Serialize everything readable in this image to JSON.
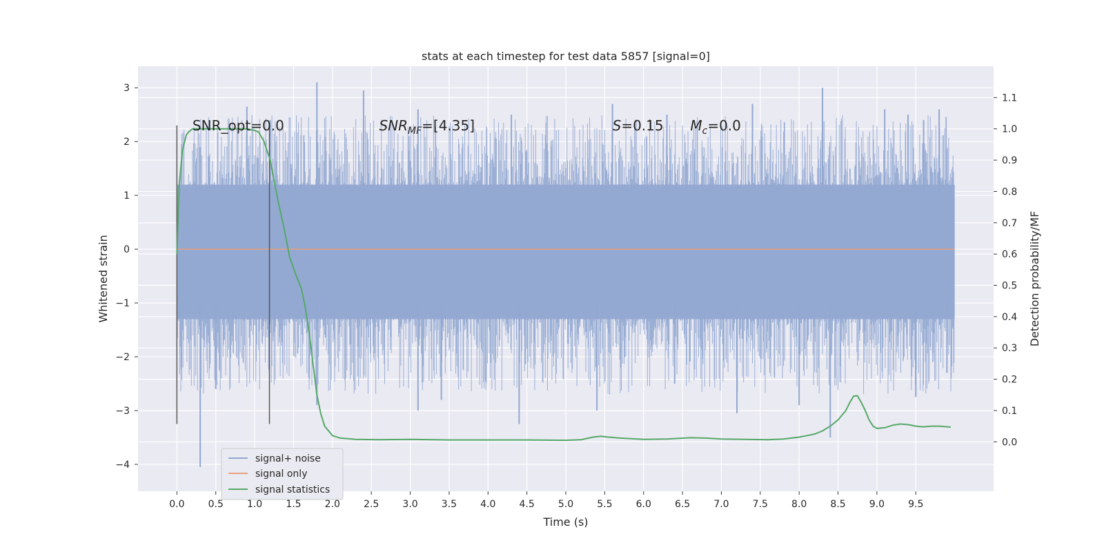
{
  "chart_data": {
    "type": "line",
    "title": "stats at each timestep for test data 5857 [signal=0]",
    "xlabel": "Time (s)",
    "ylabel": "Whitened strain",
    "y2label": "Detection probability/MF",
    "xlim": [
      -0.5,
      10.5
    ],
    "ylim": [
      -4.5,
      3.4
    ],
    "y2lim": [
      -0.158,
      1.2
    ],
    "xticks": [
      "0.0",
      "0.5",
      "1.0",
      "1.5",
      "2.0",
      "2.5",
      "3.0",
      "3.5",
      "4.0",
      "4.5",
      "5.0",
      "5.5",
      "6.0",
      "6.5",
      "7.0",
      "7.5",
      "8.0",
      "8.5",
      "9.0",
      "9.5"
    ],
    "yticks": [
      "3",
      "2",
      "1",
      "0",
      "−1",
      "−2",
      "−3",
      "−4"
    ],
    "y2ticks": [
      "1.1",
      "1.0",
      "0.9",
      "0.8",
      "0.7",
      "0.6",
      "0.5",
      "0.4",
      "0.3",
      "0.2",
      "0.1",
      "0.0"
    ],
    "grid": true,
    "legend_position": "lower-left",
    "annotations": [
      {
        "text": "SNR_opt=0.0",
        "x": 0.2,
        "y": 2.3
      },
      {
        "text": "SNR",
        "sub": "MF",
        "rest": "=[4.35]",
        "x": 2.6,
        "y": 2.3
      },
      {
        "text": "S",
        "rest": "=0.15",
        "x": 5.6,
        "y": 2.3
      },
      {
        "text": "M",
        "sub": "c",
        "rest": "=0.0",
        "x": 6.6,
        "y": 2.3
      }
    ],
    "vlines": [
      {
        "x": 0.0,
        "y0": -3.25,
        "y1": 2.3
      },
      {
        "x": 1.19,
        "y0": -3.25,
        "y1": 2.3
      }
    ],
    "series": [
      {
        "name": "signal+ noise",
        "color": "#92a8d1",
        "axis": "left",
        "x_range": [
          0.0,
          10.0
        ],
        "band": [
          -1.3,
          1.2
        ],
        "spikes_up": [
          [
            0.3,
            1.9
          ],
          [
            0.9,
            2.65
          ],
          [
            1.2,
            2.4
          ],
          [
            1.8,
            3.1
          ],
          [
            2.4,
            2.95
          ],
          [
            3.1,
            2.6
          ],
          [
            4.3,
            2.5
          ],
          [
            5.6,
            2.7
          ],
          [
            6.3,
            2.5
          ],
          [
            7.4,
            2.7
          ],
          [
            8.3,
            3.0
          ],
          [
            9.1,
            2.6
          ],
          [
            9.4,
            2.5
          ],
          [
            9.6,
            2.4
          ],
          [
            9.8,
            2.6
          ]
        ],
        "spikes_down": [
          [
            0.3,
            -4.05
          ],
          [
            0.5,
            -2.6
          ],
          [
            1.8,
            -2.9
          ],
          [
            3.1,
            -3.0
          ],
          [
            3.4,
            -2.8
          ],
          [
            4.4,
            -3.25
          ],
          [
            5.4,
            -3.0
          ],
          [
            6.4,
            -2.5
          ],
          [
            7.2,
            -3.05
          ],
          [
            8.0,
            -2.9
          ],
          [
            8.4,
            -3.5
          ],
          [
            9.5,
            -2.75
          ],
          [
            9.9,
            -2.3
          ]
        ]
      },
      {
        "name": "signal only",
        "color": "#e8a07e",
        "axis": "left",
        "x": [
          0.0,
          10.0
        ],
        "y": [
          0.0,
          0.0
        ]
      },
      {
        "name": "signal statistics",
        "color": "#55a868",
        "axis": "right",
        "x": [
          0.0,
          0.03,
          0.07,
          0.12,
          0.15,
          0.2,
          0.3,
          0.5,
          0.7,
          0.9,
          1.0,
          1.05,
          1.12,
          1.2,
          1.3,
          1.38,
          1.45,
          1.52,
          1.6,
          1.65,
          1.7,
          1.75,
          1.8,
          1.85,
          1.9,
          2.0,
          2.1,
          2.3,
          2.6,
          3.0,
          3.5,
          4.0,
          4.5,
          5.0,
          5.2,
          5.35,
          5.45,
          5.55,
          5.7,
          6.0,
          6.3,
          6.6,
          6.8,
          7.0,
          7.3,
          7.6,
          7.8,
          8.0,
          8.1,
          8.2,
          8.3,
          8.4,
          8.5,
          8.6,
          8.65,
          8.7,
          8.75,
          8.8,
          8.85,
          8.9,
          8.95,
          9.0,
          9.1,
          9.2,
          9.3,
          9.4,
          9.5,
          9.6,
          9.7,
          9.8,
          9.95
        ],
        "y": [
          0.6,
          0.82,
          0.93,
          0.98,
          0.99,
          1.0,
          1.0,
          1.0,
          1.0,
          1.0,
          0.995,
          0.99,
          0.96,
          0.9,
          0.77,
          0.68,
          0.59,
          0.54,
          0.49,
          0.43,
          0.35,
          0.25,
          0.15,
          0.09,
          0.05,
          0.02,
          0.012,
          0.008,
          0.007,
          0.008,
          0.006,
          0.006,
          0.006,
          0.005,
          0.007,
          0.015,
          0.018,
          0.015,
          0.012,
          0.008,
          0.009,
          0.013,
          0.012,
          0.009,
          0.008,
          0.007,
          0.009,
          0.015,
          0.02,
          0.025,
          0.035,
          0.05,
          0.07,
          0.1,
          0.125,
          0.146,
          0.147,
          0.125,
          0.1,
          0.07,
          0.05,
          0.043,
          0.045,
          0.053,
          0.057,
          0.055,
          0.05,
          0.048,
          0.05,
          0.05,
          0.047
        ]
      }
    ]
  }
}
